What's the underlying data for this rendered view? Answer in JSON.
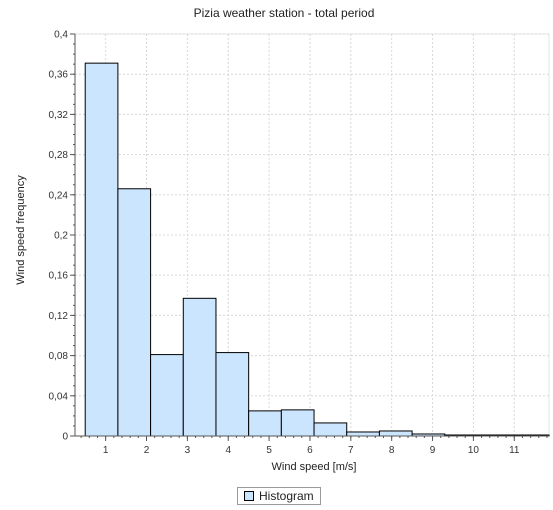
{
  "chart_data": {
    "type": "bar",
    "title": "Pizia weather station - total period",
    "xlabel": "Wind speed [m/s]",
    "ylabel": "Wind speed frequency",
    "x_ticks": [
      1,
      2,
      3,
      4,
      5,
      6,
      7,
      8,
      9,
      10,
      11
    ],
    "y_ticks": [
      "0",
      "0,04",
      "0,08",
      "0,12",
      "0,16",
      "0,2",
      "0,24",
      "0,28",
      "0,32",
      "0,36",
      "0,4"
    ],
    "xlim": [
      0.25,
      11.85
    ],
    "ylim": [
      0,
      0.4
    ],
    "bin_width": 0.8,
    "bins_start": [
      0.5,
      1.3,
      2.1,
      2.9,
      3.7,
      4.5,
      5.3,
      6.1,
      6.9,
      7.7,
      8.5,
      9.3,
      10.1,
      10.9,
      11.7
    ],
    "values": [
      0.371,
      0.246,
      0.081,
      0.137,
      0.083,
      0.025,
      0.026,
      0.013,
      0.004,
      0.005,
      0.002,
      0.001,
      0.001,
      0.001,
      0.001
    ],
    "series": [
      {
        "name": "Histogram"
      }
    ],
    "legend_position": "bottom-center",
    "grid": true,
    "colors": {
      "bar_fill": "#cce5ff",
      "bar_stroke": "#000000",
      "grid": "#d8d8d8",
      "axis": "#555555"
    }
  }
}
